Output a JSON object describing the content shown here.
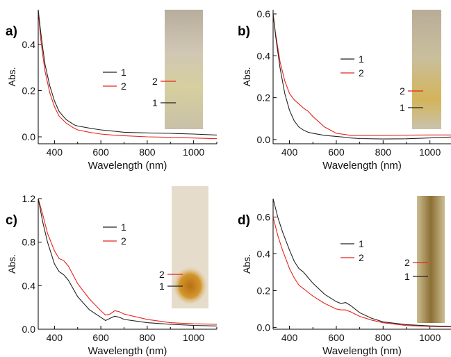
{
  "chart_data": [
    {
      "panel_label": "a)",
      "type": "line",
      "xlabel": "Wavelength (nm)",
      "ylabel": "Abs.",
      "xlim": [
        330,
        1100
      ],
      "ylim": [
        -0.03,
        0.55
      ],
      "xticks": [
        400,
        600,
        800,
        1000
      ],
      "yticks": [
        0.0,
        0.2,
        0.4
      ],
      "ytick_labels": [
        "0.0",
        "0.2",
        "0.4"
      ],
      "legend": "center",
      "series": [
        {
          "name": "1",
          "color": "#222222",
          "x": [
            330,
            340,
            350,
            360,
            380,
            400,
            420,
            450,
            480,
            490,
            500,
            550,
            580,
            600,
            650,
            660,
            700,
            800,
            900,
            1000,
            1100
          ],
          "y": [
            0.55,
            0.46,
            0.38,
            0.31,
            0.22,
            0.155,
            0.11,
            0.075,
            0.055,
            0.05,
            0.047,
            0.038,
            0.033,
            0.03,
            0.025,
            0.024,
            0.02,
            0.017,
            0.015,
            0.012,
            0.008
          ]
        },
        {
          "name": "2",
          "color": "#e8231b",
          "x": [
            330,
            340,
            350,
            360,
            380,
            400,
            420,
            450,
            480,
            490,
            500,
            550,
            580,
            600,
            650,
            660,
            700,
            800,
            900,
            1000,
            1100
          ],
          "y": [
            0.55,
            0.43,
            0.35,
            0.28,
            0.19,
            0.13,
            0.09,
            0.06,
            0.04,
            0.035,
            0.03,
            0.02,
            0.015,
            0.012,
            0.008,
            0.007,
            0.005,
            0.0,
            -0.002,
            -0.005,
            -0.008
          ]
        }
      ],
      "inset": {
        "labels": [
          "2",
          "1"
        ],
        "colors": [
          "#e8231b",
          "#222222"
        ],
        "style": "pale"
      }
    },
    {
      "panel_label": "b)",
      "type": "line",
      "xlabel": "Wavelength (nm)",
      "ylabel": "Abs.",
      "xlim": [
        330,
        1090
      ],
      "ylim": [
        -0.02,
        0.62
      ],
      "xticks": [
        400,
        600,
        800,
        1000
      ],
      "yticks": [
        0.0,
        0.2,
        0.4,
        0.6
      ],
      "ytick_labels": [
        "0.0",
        "0.2",
        "0.4",
        "0.6"
      ],
      "legend": "top-center",
      "series": [
        {
          "name": "1",
          "color": "#222222",
          "x": [
            330,
            340,
            350,
            360,
            380,
            400,
            420,
            440,
            460,
            480,
            500,
            550,
            600,
            650,
            660,
            700,
            800,
            900,
            1000,
            1090
          ],
          "y": [
            0.6,
            0.5,
            0.42,
            0.34,
            0.22,
            0.14,
            0.09,
            0.06,
            0.045,
            0.035,
            0.03,
            0.02,
            0.015,
            0.01,
            0.008,
            0.005,
            0.003,
            0.004,
            0.008,
            0.012
          ]
        },
        {
          "name": "2",
          "color": "#e8231b",
          "x": [
            330,
            340,
            350,
            360,
            380,
            400,
            420,
            440,
            460,
            480,
            500,
            550,
            600,
            650,
            660,
            700,
            800,
            900,
            1000,
            1090
          ],
          "y": [
            0.6,
            0.51,
            0.44,
            0.37,
            0.28,
            0.22,
            0.19,
            0.17,
            0.15,
            0.135,
            0.11,
            0.06,
            0.03,
            0.022,
            0.02,
            0.02,
            0.02,
            0.021,
            0.022,
            0.022
          ]
        }
      ],
      "inset": {
        "labels": [
          "2",
          "1"
        ],
        "colors": [
          "#e8231b",
          "#222222"
        ],
        "style": "yellow"
      }
    },
    {
      "panel_label": "c)",
      "type": "line",
      "xlabel": "Wavelength (nm)",
      "ylabel": "Abs.",
      "xlim": [
        330,
        1100
      ],
      "ylim": [
        0.0,
        1.2
      ],
      "xticks": [
        400,
        600,
        800,
        1000
      ],
      "yticks": [
        0.0,
        0.4,
        0.8,
        1.2
      ],
      "ytick_labels": [
        "0.0",
        "0.4",
        "0.8",
        "1.2"
      ],
      "legend": "top-center",
      "series": [
        {
          "name": "1",
          "color": "#222222",
          "x": [
            330,
            350,
            370,
            400,
            420,
            440,
            460,
            500,
            550,
            600,
            620,
            640,
            660,
            680,
            700,
            800,
            900,
            1000,
            1100
          ],
          "y": [
            1.2,
            0.98,
            0.8,
            0.6,
            0.53,
            0.5,
            0.45,
            0.3,
            0.18,
            0.11,
            0.08,
            0.1,
            0.12,
            0.11,
            0.09,
            0.06,
            0.045,
            0.035,
            0.03
          ]
        },
        {
          "name": "2",
          "color": "#e8231b",
          "x": [
            330,
            350,
            370,
            400,
            420,
            440,
            460,
            500,
            550,
            600,
            620,
            640,
            660,
            680,
            700,
            800,
            900,
            1000,
            1100
          ],
          "y": [
            1.2,
            1.05,
            0.88,
            0.72,
            0.65,
            0.63,
            0.58,
            0.42,
            0.28,
            0.17,
            0.13,
            0.14,
            0.17,
            0.16,
            0.14,
            0.09,
            0.06,
            0.05,
            0.045
          ]
        }
      ],
      "inset": {
        "labels": [
          "2",
          "1"
        ],
        "colors": [
          "#e8231b",
          "#222222"
        ],
        "style": "orange"
      }
    },
    {
      "panel_label": "d)",
      "type": "line",
      "xlabel": "Wavelength (nm)",
      "ylabel": "Abs.",
      "xlim": [
        330,
        1090
      ],
      "ylim": [
        -0.01,
        0.7
      ],
      "xticks": [
        400,
        600,
        800,
        1000
      ],
      "yticks": [
        0.0,
        0.2,
        0.4,
        0.6
      ],
      "ytick_labels": [
        "0.0",
        "0.2",
        "0.4",
        "0.6"
      ],
      "legend": "top-center",
      "series": [
        {
          "name": "1",
          "color": "#222222",
          "x": [
            330,
            350,
            370,
            400,
            420,
            440,
            460,
            480,
            500,
            550,
            600,
            620,
            640,
            660,
            700,
            750,
            800,
            900,
            1000,
            1090
          ],
          "y": [
            0.7,
            0.6,
            0.52,
            0.42,
            0.36,
            0.32,
            0.3,
            0.27,
            0.24,
            0.18,
            0.14,
            0.13,
            0.135,
            0.12,
            0.08,
            0.05,
            0.03,
            0.015,
            0.008,
            0.005
          ]
        },
        {
          "name": "2",
          "color": "#e8231b",
          "x": [
            330,
            350,
            370,
            400,
            420,
            440,
            460,
            480,
            500,
            550,
            600,
            620,
            640,
            660,
            700,
            750,
            800,
            900,
            1000,
            1090
          ],
          "y": [
            0.6,
            0.5,
            0.42,
            0.32,
            0.27,
            0.23,
            0.21,
            0.19,
            0.17,
            0.13,
            0.1,
            0.095,
            0.095,
            0.085,
            0.06,
            0.04,
            0.025,
            0.01,
            0.005,
            0.003
          ]
        }
      ],
      "inset": {
        "labels": [
          "2",
          "1"
        ],
        "colors": [
          "#e8231b",
          "#222222"
        ],
        "style": "brown"
      }
    }
  ]
}
